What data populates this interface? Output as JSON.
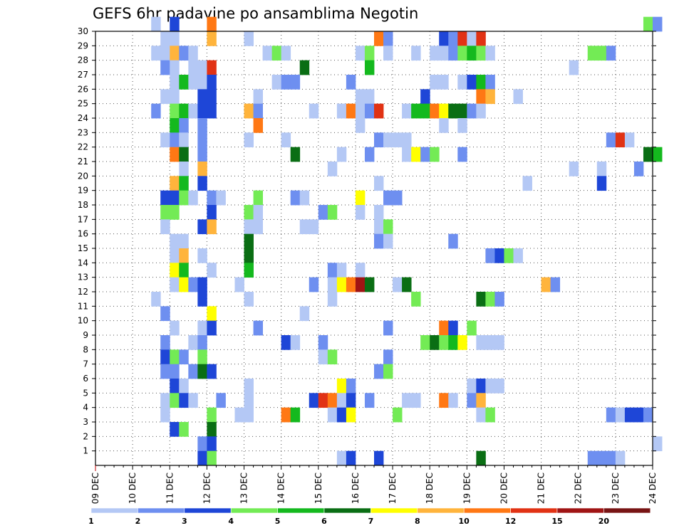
{
  "chart_data": {
    "type": "heatmap",
    "title": "GEFS 6hr padavine po ansamblima Negotin",
    "xlabel": "",
    "ylabel": "",
    "x_tick_labels": [
      "09 DEC",
      "10 DEC",
      "11 DEC",
      "12 DEC",
      "13 DEC",
      "14 DEC",
      "15 DEC",
      "16 DEC",
      "17 DEC",
      "18 DEC",
      "19 DEC",
      "20 DEC",
      "21 DEC",
      "22 DEC",
      "23 DEC",
      "24 DEC"
    ],
    "xlim": [
      "09 DEC",
      "24 DEC"
    ],
    "time_step": "6hr",
    "y_ticks": [
      1,
      2,
      3,
      4,
      5,
      6,
      7,
      8,
      9,
      10,
      11,
      12,
      13,
      14,
      15,
      16,
      17,
      18,
      19,
      20,
      21,
      22,
      23,
      24,
      25,
      26,
      27,
      28,
      29,
      30
    ],
    "ylim": [
      0,
      30
    ],
    "grid": true,
    "colorbar": {
      "orientation": "horizontal",
      "position": "bottom",
      "levels": [
        1,
        2,
        3,
        4,
        5,
        6,
        7,
        8,
        10,
        12,
        15,
        20
      ],
      "colors": [
        "#b4c8f5",
        "#6e8ff0",
        "#1e46d7",
        "#73eb55",
        "#14b91e",
        "#0a6e14",
        "#ffff00",
        "#ffb43c",
        "#ff7814",
        "#e13214",
        "#a01414",
        "#781414"
      ]
    },
    "colors": {
      "0": "#b4c8f5",
      "1": "#6e8ff0",
      "2": "#1e46d7",
      "3": "#73eb55",
      "4": "#14b91e",
      "5": "#0a6e14",
      "6": "#ffff00",
      "7": "#ffb43c",
      "8": "#ff7814",
      "9": "#e13214",
      "10": "#a01414"
    },
    "legend": {
      "0": "1-2",
      "1": "2-3",
      "2": "3-4",
      "3": "4-5",
      "4": "5-6",
      "5": "6-7",
      "6": "7-8",
      "7": "8-10",
      "8": "10-12",
      "9": "12-15",
      "10": "15-20"
    },
    "cells_note": "each cell: [member, time step (6h from 09 DEC 00z), color class]",
    "cells": [
      [
        30,
        6,
        0
      ],
      [
        30,
        8,
        2
      ],
      [
        30,
        12,
        8
      ],
      [
        30,
        59,
        3
      ],
      [
        30,
        60,
        1
      ],
      [
        29,
        7,
        0
      ],
      [
        29,
        8,
        0
      ],
      [
        29,
        12,
        7
      ],
      [
        29,
        16,
        0
      ],
      [
        29,
        30,
        8
      ],
      [
        29,
        31,
        1
      ],
      [
        29,
        37,
        2
      ],
      [
        29,
        38,
        1
      ],
      [
        29,
        39,
        9
      ],
      [
        29,
        40,
        0
      ],
      [
        29,
        41,
        9
      ],
      [
        28,
        6,
        0
      ],
      [
        28,
        7,
        0
      ],
      [
        28,
        8,
        7
      ],
      [
        28,
        9,
        1
      ],
      [
        28,
        10,
        0
      ],
      [
        28,
        18,
        0
      ],
      [
        28,
        19,
        3
      ],
      [
        28,
        20,
        0
      ],
      [
        28,
        28,
        0
      ],
      [
        28,
        29,
        3
      ],
      [
        28,
        31,
        0
      ],
      [
        28,
        34,
        0
      ],
      [
        28,
        36,
        0
      ],
      [
        28,
        37,
        0
      ],
      [
        28,
        38,
        1
      ],
      [
        28,
        39,
        3
      ],
      [
        28,
        40,
        4
      ],
      [
        28,
        41,
        3
      ],
      [
        28,
        42,
        0
      ],
      [
        28,
        53,
        3
      ],
      [
        28,
        54,
        3
      ],
      [
        28,
        55,
        1
      ],
      [
        27,
        7,
        1
      ],
      [
        27,
        8,
        0
      ],
      [
        27,
        10,
        0
      ],
      [
        27,
        11,
        0
      ],
      [
        27,
        12,
        9
      ],
      [
        27,
        22,
        5
      ],
      [
        27,
        29,
        4
      ],
      [
        27,
        51,
        0
      ],
      [
        26,
        8,
        0
      ],
      [
        26,
        9,
        4
      ],
      [
        26,
        10,
        0
      ],
      [
        26,
        11,
        0
      ],
      [
        26,
        12,
        2
      ],
      [
        26,
        19,
        0
      ],
      [
        26,
        20,
        1
      ],
      [
        26,
        21,
        1
      ],
      [
        26,
        27,
        1
      ],
      [
        26,
        36,
        0
      ],
      [
        26,
        37,
        0
      ],
      [
        26,
        39,
        0
      ],
      [
        26,
        40,
        2
      ],
      [
        26,
        41,
        4
      ],
      [
        26,
        42,
        1
      ],
      [
        25,
        7,
        0
      ],
      [
        25,
        8,
        0
      ],
      [
        25,
        11,
        2
      ],
      [
        25,
        12,
        2
      ],
      [
        25,
        17,
        0
      ],
      [
        25,
        28,
        0
      ],
      [
        25,
        29,
        0
      ],
      [
        25,
        35,
        2
      ],
      [
        25,
        41,
        8
      ],
      [
        25,
        42,
        7
      ],
      [
        25,
        45,
        0
      ],
      [
        24,
        6,
        1
      ],
      [
        24,
        8,
        3
      ],
      [
        24,
        9,
        4
      ],
      [
        24,
        10,
        0
      ],
      [
        24,
        11,
        2
      ],
      [
        24,
        12,
        2
      ],
      [
        24,
        16,
        7
      ],
      [
        24,
        17,
        1
      ],
      [
        24,
        23,
        0
      ],
      [
        24,
        26,
        0
      ],
      [
        24,
        27,
        8
      ],
      [
        24,
        28,
        0
      ],
      [
        24,
        29,
        1
      ],
      [
        24,
        30,
        9
      ],
      [
        24,
        33,
        0
      ],
      [
        24,
        34,
        4
      ],
      [
        24,
        35,
        4
      ],
      [
        24,
        36,
        8
      ],
      [
        24,
        37,
        6
      ],
      [
        24,
        38,
        5
      ],
      [
        24,
        39,
        5
      ],
      [
        24,
        40,
        1
      ],
      [
        24,
        41,
        0
      ],
      [
        23,
        8,
        4
      ],
      [
        23,
        9,
        1
      ],
      [
        23,
        11,
        1
      ],
      [
        23,
        17,
        8
      ],
      [
        23,
        28,
        0
      ],
      [
        23,
        37,
        0
      ],
      [
        23,
        39,
        0
      ],
      [
        22,
        7,
        0
      ],
      [
        22,
        8,
        1
      ],
      [
        22,
        9,
        0
      ],
      [
        22,
        11,
        1
      ],
      [
        22,
        16,
        0
      ],
      [
        22,
        20,
        0
      ],
      [
        22,
        30,
        1
      ],
      [
        22,
        31,
        0
      ],
      [
        22,
        32,
        0
      ],
      [
        22,
        33,
        0
      ],
      [
        22,
        55,
        1
      ],
      [
        22,
        56,
        9
      ],
      [
        22,
        57,
        0
      ],
      [
        21,
        8,
        8
      ],
      [
        21,
        9,
        5
      ],
      [
        21,
        11,
        1
      ],
      [
        21,
        21,
        5
      ],
      [
        21,
        26,
        0
      ],
      [
        21,
        29,
        1
      ],
      [
        21,
        33,
        0
      ],
      [
        21,
        34,
        6
      ],
      [
        21,
        35,
        1
      ],
      [
        21,
        36,
        3
      ],
      [
        21,
        39,
        1
      ],
      [
        21,
        59,
        5
      ],
      [
        21,
        60,
        4
      ],
      [
        20,
        9,
        0
      ],
      [
        20,
        11,
        7
      ],
      [
        20,
        25,
        0
      ],
      [
        20,
        51,
        0
      ],
      [
        20,
        54,
        0
      ],
      [
        20,
        58,
        1
      ],
      [
        19,
        8,
        7
      ],
      [
        19,
        9,
        4
      ],
      [
        19,
        11,
        2
      ],
      [
        19,
        30,
        0
      ],
      [
        19,
        46,
        0
      ],
      [
        19,
        54,
        2
      ],
      [
        18,
        7,
        2
      ],
      [
        18,
        8,
        2
      ],
      [
        18,
        9,
        3
      ],
      [
        18,
        10,
        0
      ],
      [
        18,
        12,
        1
      ],
      [
        18,
        13,
        0
      ],
      [
        18,
        17,
        3
      ],
      [
        18,
        21,
        1
      ],
      [
        18,
        22,
        0
      ],
      [
        18,
        28,
        6
      ],
      [
        18,
        31,
        1
      ],
      [
        18,
        32,
        1
      ],
      [
        17,
        7,
        3
      ],
      [
        17,
        8,
        3
      ],
      [
        17,
        12,
        2
      ],
      [
        17,
        16,
        3
      ],
      [
        17,
        17,
        0
      ],
      [
        17,
        24,
        1
      ],
      [
        17,
        25,
        3
      ],
      [
        17,
        28,
        0
      ],
      [
        17,
        30,
        0
      ],
      [
        16,
        7,
        0
      ],
      [
        16,
        11,
        2
      ],
      [
        16,
        12,
        7
      ],
      [
        16,
        16,
        0
      ],
      [
        16,
        17,
        0
      ],
      [
        16,
        22,
        0
      ],
      [
        16,
        23,
        0
      ],
      [
        16,
        30,
        0
      ],
      [
        16,
        31,
        3
      ],
      [
        15,
        8,
        0
      ],
      [
        15,
        9,
        0
      ],
      [
        15,
        16,
        5
      ],
      [
        15,
        30,
        1
      ],
      [
        15,
        31,
        0
      ],
      [
        15,
        38,
        1
      ],
      [
        14,
        8,
        0
      ],
      [
        14,
        9,
        7
      ],
      [
        14,
        11,
        0
      ],
      [
        14,
        16,
        5
      ],
      [
        14,
        42,
        1
      ],
      [
        14,
        43,
        2
      ],
      [
        14,
        44,
        3
      ],
      [
        14,
        45,
        0
      ],
      [
        13,
        8,
        6
      ],
      [
        13,
        9,
        4
      ],
      [
        13,
        12,
        0
      ],
      [
        13,
        16,
        4
      ],
      [
        13,
        25,
        1
      ],
      [
        13,
        26,
        0
      ],
      [
        13,
        28,
        0
      ],
      [
        12,
        8,
        0
      ],
      [
        12,
        9,
        6
      ],
      [
        12,
        10,
        1
      ],
      [
        12,
        11,
        2
      ],
      [
        12,
        15,
        0
      ],
      [
        12,
        23,
        1
      ],
      [
        12,
        25,
        0
      ],
      [
        12,
        26,
        6
      ],
      [
        12,
        27,
        8
      ],
      [
        12,
        28,
        10
      ],
      [
        12,
        29,
        5
      ],
      [
        12,
        32,
        0
      ],
      [
        12,
        33,
        5
      ],
      [
        12,
        48,
        7
      ],
      [
        12,
        49,
        1
      ],
      [
        11,
        6,
        0
      ],
      [
        11,
        11,
        2
      ],
      [
        11,
        16,
        0
      ],
      [
        11,
        25,
        0
      ],
      [
        11,
        34,
        3
      ],
      [
        11,
        41,
        5
      ],
      [
        11,
        42,
        3
      ],
      [
        11,
        43,
        1
      ],
      [
        10,
        7,
        1
      ],
      [
        10,
        12,
        6
      ],
      [
        10,
        22,
        0
      ],
      [
        9,
        8,
        0
      ],
      [
        9,
        11,
        0
      ],
      [
        9,
        12,
        2
      ],
      [
        9,
        17,
        1
      ],
      [
        9,
        31,
        1
      ],
      [
        9,
        37,
        8
      ],
      [
        9,
        38,
        2
      ],
      [
        9,
        40,
        3
      ],
      [
        8,
        7,
        1
      ],
      [
        8,
        10,
        0
      ],
      [
        8,
        11,
        1
      ],
      [
        8,
        20,
        2
      ],
      [
        8,
        21,
        0
      ],
      [
        8,
        24,
        1
      ],
      [
        8,
        35,
        3
      ],
      [
        8,
        36,
        5
      ],
      [
        8,
        37,
        3
      ],
      [
        8,
        38,
        4
      ],
      [
        8,
        39,
        6
      ],
      [
        8,
        41,
        0
      ],
      [
        8,
        42,
        0
      ],
      [
        8,
        43,
        0
      ],
      [
        7,
        7,
        2
      ],
      [
        7,
        8,
        3
      ],
      [
        7,
        9,
        1
      ],
      [
        7,
        11,
        3
      ],
      [
        7,
        24,
        0
      ],
      [
        7,
        25,
        3
      ],
      [
        7,
        31,
        1
      ],
      [
        6,
        7,
        1
      ],
      [
        6,
        8,
        1
      ],
      [
        6,
        10,
        1
      ],
      [
        6,
        11,
        5
      ],
      [
        6,
        12,
        2
      ],
      [
        6,
        30,
        1
      ],
      [
        6,
        31,
        3
      ],
      [
        5,
        8,
        2
      ],
      [
        5,
        9,
        0
      ],
      [
        5,
        16,
        0
      ],
      [
        5,
        26,
        6
      ],
      [
        5,
        27,
        1
      ],
      [
        5,
        40,
        0
      ],
      [
        5,
        41,
        2
      ],
      [
        5,
        42,
        0
      ],
      [
        5,
        43,
        0
      ],
      [
        4,
        7,
        0
      ],
      [
        4,
        8,
        3
      ],
      [
        4,
        9,
        2
      ],
      [
        4,
        10,
        0
      ],
      [
        4,
        13,
        1
      ],
      [
        4,
        16,
        0
      ],
      [
        4,
        23,
        2
      ],
      [
        4,
        24,
        9
      ],
      [
        4,
        25,
        8
      ],
      [
        4,
        26,
        0
      ],
      [
        4,
        27,
        2
      ],
      [
        4,
        29,
        1
      ],
      [
        4,
        33,
        0
      ],
      [
        4,
        34,
        0
      ],
      [
        4,
        37,
        8
      ],
      [
        4,
        38,
        0
      ],
      [
        4,
        40,
        1
      ],
      [
        4,
        41,
        7
      ],
      [
        3,
        7,
        0
      ],
      [
        3,
        12,
        3
      ],
      [
        3,
        15,
        0
      ],
      [
        3,
        16,
        0
      ],
      [
        3,
        20,
        8
      ],
      [
        3,
        21,
        4
      ],
      [
        3,
        25,
        0
      ],
      [
        3,
        26,
        2
      ],
      [
        3,
        27,
        6
      ],
      [
        3,
        32,
        3
      ],
      [
        3,
        41,
        0
      ],
      [
        3,
        42,
        3
      ],
      [
        3,
        55,
        1
      ],
      [
        3,
        56,
        0
      ],
      [
        3,
        57,
        2
      ],
      [
        3,
        58,
        2
      ],
      [
        3,
        59,
        1
      ],
      [
        2,
        8,
        2
      ],
      [
        2,
        9,
        3
      ],
      [
        2,
        12,
        5
      ],
      [
        1,
        11,
        1
      ],
      [
        1,
        12,
        2
      ],
      [
        1,
        60,
        0
      ],
      [
        0,
        11,
        2
      ],
      [
        0,
        12,
        3
      ],
      [
        0,
        26,
        0
      ],
      [
        0,
        27,
        2
      ],
      [
        0,
        30,
        2
      ],
      [
        0,
        41,
        5
      ],
      [
        0,
        53,
        1
      ],
      [
        0,
        54,
        1
      ],
      [
        0,
        55,
        1
      ],
      [
        0,
        56,
        0
      ]
    ]
  }
}
